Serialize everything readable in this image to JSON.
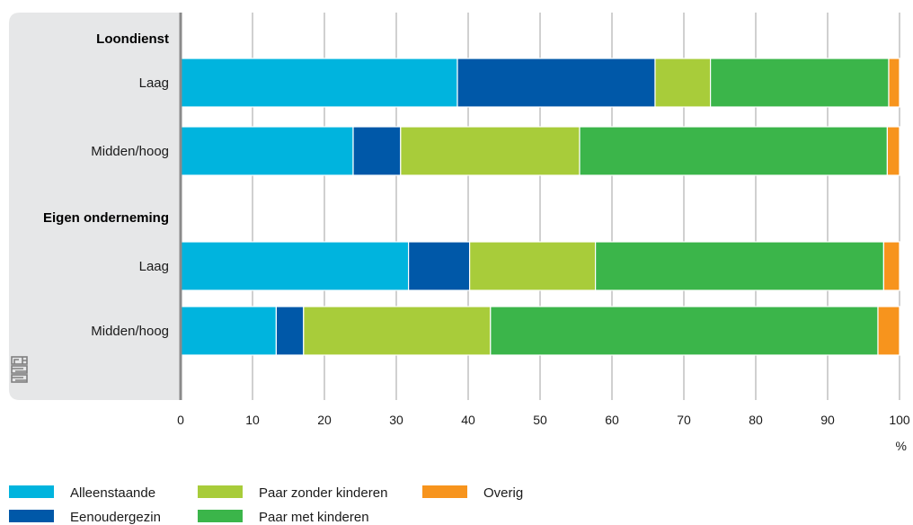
{
  "chart_data": {
    "type": "bar",
    "orientation": "horizontal",
    "stacked": true,
    "groups": [
      {
        "label": "Loondienst",
        "categories": [
          "Laag",
          "Midden/hoog"
        ]
      },
      {
        "label": "Eigen onderneming",
        "categories": [
          "Laag",
          "Midden/hoog"
        ]
      }
    ],
    "categories": [
      "Laag",
      "Midden/hoog",
      "Laag",
      "Midden/hoog"
    ],
    "series": [
      {
        "name": "Alleenstaande",
        "color": "#00b4de",
        "values": [
          38.5,
          24.0,
          31.7,
          13.3
        ]
      },
      {
        "name": "Eenoudergezin",
        "color": "#0058a8",
        "values": [
          27.5,
          6.6,
          8.5,
          3.8
        ]
      },
      {
        "name": "Paar zonder kinderen",
        "color": "#a8cc3a",
        "values": [
          7.7,
          24.9,
          17.5,
          26.0
        ]
      },
      {
        "name": "Paar met kinderen",
        "color": "#3bb54a",
        "values": [
          24.8,
          42.8,
          40.1,
          53.9
        ]
      },
      {
        "name": "Overig",
        "color": "#f7941d",
        "values": [
          1.5,
          1.7,
          2.2,
          3.0
        ]
      }
    ],
    "xlim": [
      0,
      100
    ],
    "xticks": [
      "0",
      "10",
      "20",
      "30",
      "40",
      "50",
      "60",
      "70",
      "80",
      "90",
      "100"
    ],
    "xunit": "%",
    "grid": true,
    "legend_position": "bottom"
  },
  "colors": {
    "label_panel": "#e6e7e8",
    "axis": "#8a8a8a",
    "grid": "#a0a0a0"
  },
  "logo_icon": "cbs-logo-icon"
}
